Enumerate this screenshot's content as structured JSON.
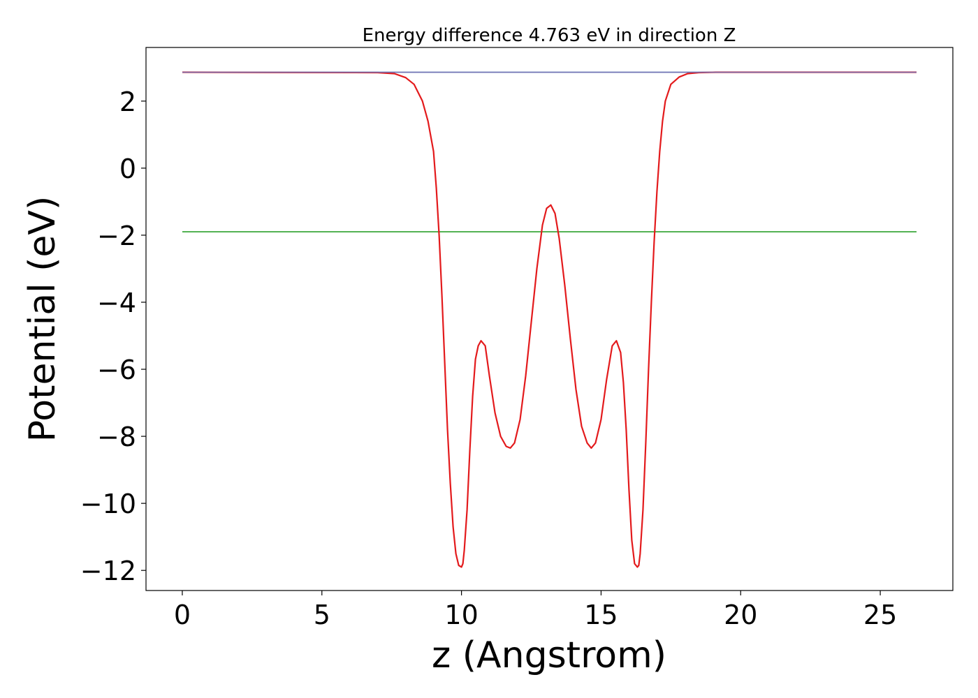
{
  "chart_data": {
    "type": "line",
    "title": "Energy difference 4.763 eV in direction Z",
    "xlabel": "z (Angstrom)",
    "ylabel": "Potential (eV)",
    "xlim": [
      -1.3,
      27.6
    ],
    "ylim": [
      -12.6,
      3.6
    ],
    "xticks": [
      0,
      5,
      10,
      15,
      20,
      25
    ],
    "yticks": [
      2,
      0,
      -2,
      -4,
      -6,
      -8,
      -10,
      -12
    ],
    "ytick_labels": [
      "2",
      "0",
      "−2",
      "−4",
      "−6",
      "−8",
      "−10",
      "−12"
    ],
    "grid": false,
    "legend": false,
    "series": [
      {
        "color": "#1f77b4",
        "x": [
          0,
          26.3
        ],
        "y": [
          2.86,
          2.86
        ]
      },
      {
        "color": "#2ca02c",
        "x": [
          0,
          26.3
        ],
        "y": [
          -1.9,
          -1.9
        ]
      },
      {
        "color": "#e31a1c",
        "x": [
          0,
          7.0,
          7.6,
          8.0,
          8.3,
          8.6,
          8.8,
          9.0,
          9.1,
          9.2,
          9.3,
          9.4,
          9.5,
          9.6,
          9.7,
          9.8,
          9.9,
          10.0,
          10.05,
          10.1,
          10.2,
          10.3,
          10.4,
          10.5,
          10.6,
          10.7,
          10.85,
          11.0,
          11.2,
          11.4,
          11.6,
          11.75,
          11.9,
          12.1,
          12.3,
          12.5,
          12.7,
          12.9,
          13.05,
          13.2,
          13.35,
          13.5,
          13.7,
          13.9,
          14.1,
          14.3,
          14.5,
          14.65,
          14.8,
          15.0,
          15.2,
          15.4,
          15.55,
          15.7,
          15.8,
          15.9,
          16.0,
          16.1,
          16.2,
          16.3,
          16.35,
          16.4,
          16.5,
          16.6,
          16.7,
          16.8,
          16.9,
          17.0,
          17.1,
          17.2,
          17.3,
          17.5,
          17.8,
          18.1,
          18.5,
          19.1,
          26.3
        ],
        "y": [
          2.86,
          2.85,
          2.82,
          2.7,
          2.5,
          2.0,
          1.4,
          0.5,
          -0.6,
          -2.0,
          -3.8,
          -5.8,
          -7.8,
          -9.4,
          -10.7,
          -11.5,
          -11.85,
          -11.9,
          -11.8,
          -11.4,
          -10.2,
          -8.4,
          -6.8,
          -5.7,
          -5.3,
          -5.15,
          -5.3,
          -6.2,
          -7.3,
          -8.0,
          -8.3,
          -8.35,
          -8.2,
          -7.5,
          -6.2,
          -4.6,
          -3.0,
          -1.7,
          -1.2,
          -1.1,
          -1.35,
          -2.1,
          -3.5,
          -5.1,
          -6.6,
          -7.7,
          -8.2,
          -8.35,
          -8.2,
          -7.5,
          -6.3,
          -5.3,
          -5.15,
          -5.5,
          -6.4,
          -7.8,
          -9.6,
          -11.1,
          -11.8,
          -11.9,
          -11.85,
          -11.5,
          -10.2,
          -8.2,
          -6.0,
          -4.0,
          -2.2,
          -0.7,
          0.5,
          1.4,
          2.0,
          2.5,
          2.72,
          2.82,
          2.85,
          2.86,
          2.86
        ]
      },
      {
        "color": "#7570b3",
        "x": [
          0,
          7.2,
          19.0,
          26.3
        ],
        "y": [
          2.86,
          2.86,
          2.86,
          2.86
        ]
      }
    ]
  }
}
